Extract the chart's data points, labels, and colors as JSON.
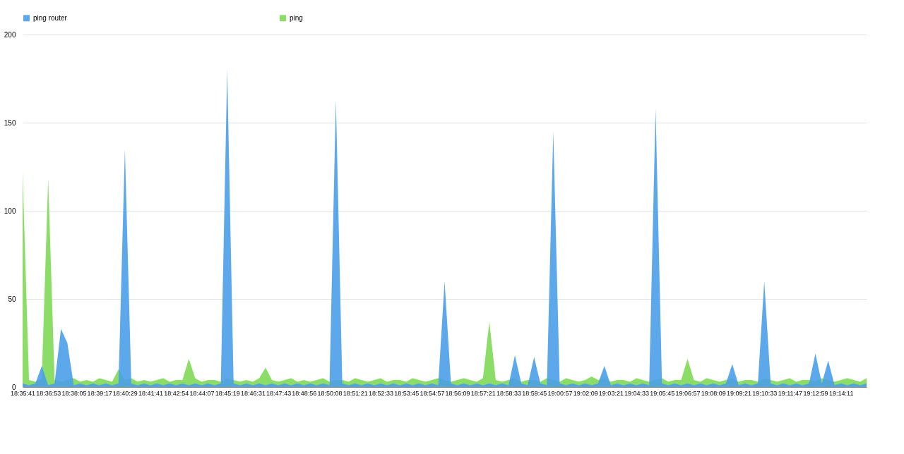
{
  "chart_data": {
    "type": "area",
    "categories": [
      "18:35:41",
      null,
      null,
      null,
      "18:36:53",
      null,
      null,
      null,
      "18:38:05",
      null,
      null,
      null,
      "18:39:17",
      null,
      null,
      null,
      "18:40:29",
      null,
      null,
      null,
      "18:41:41",
      null,
      null,
      null,
      "18:42:54",
      null,
      null,
      null,
      "18:44:07",
      null,
      null,
      null,
      "18:45:19",
      null,
      null,
      null,
      "18:46:31",
      null,
      null,
      null,
      "18:47:43",
      null,
      null,
      null,
      "18:48:56",
      null,
      null,
      null,
      "18:50:08",
      null,
      null,
      null,
      "18:51:21",
      null,
      null,
      null,
      "18:52:33",
      null,
      null,
      null,
      "18:53:45",
      null,
      null,
      null,
      "18:54:57",
      null,
      null,
      null,
      "18:56:09",
      null,
      null,
      null,
      "18:57:21",
      null,
      null,
      null,
      "18:58:33",
      null,
      null,
      null,
      "18:59:45",
      null,
      null,
      null,
      "19:00:57",
      null,
      null,
      null,
      "19:02:09",
      null,
      null,
      null,
      "19:03:21",
      null,
      null,
      null,
      "19:04:33",
      null,
      null,
      null,
      "19:05:45",
      null,
      null,
      null,
      "19:06:57",
      null,
      null,
      null,
      "19:08:09",
      null,
      null,
      null,
      "19:09:21",
      null,
      null,
      null,
      "19:10:33",
      null,
      null,
      null,
      "19:11:47",
      null,
      null,
      null,
      "19:12:59",
      null,
      null,
      null,
      "19:14:11",
      null,
      null,
      null,
      null
    ],
    "series": [
      {
        "name": "ping router",
        "color": "#4a9fe8",
        "values": [
          2,
          1,
          2,
          12,
          1,
          2,
          33,
          25,
          1,
          2,
          1,
          2,
          1,
          2,
          1,
          2,
          135,
          2,
          1,
          2,
          1,
          2,
          1,
          2,
          1,
          2,
          1,
          2,
          1,
          2,
          1,
          2,
          180,
          2,
          1,
          2,
          1,
          2,
          1,
          2,
          1,
          2,
          1,
          2,
          1,
          2,
          1,
          2,
          1,
          163,
          2,
          1,
          2,
          1,
          2,
          1,
          2,
          1,
          2,
          1,
          2,
          1,
          2,
          1,
          2,
          1,
          60,
          2,
          1,
          2,
          1,
          2,
          1,
          2,
          1,
          2,
          1,
          18,
          2,
          1,
          17,
          2,
          1,
          145,
          2,
          1,
          2,
          1,
          2,
          1,
          2,
          12,
          1,
          2,
          1,
          2,
          1,
          2,
          1,
          158,
          2,
          1,
          2,
          1,
          2,
          1,
          2,
          1,
          2,
          1,
          2,
          13,
          1,
          2,
          1,
          2,
          60,
          2,
          1,
          2,
          1,
          2,
          1,
          2,
          19,
          2,
          15,
          1,
          2,
          1,
          2,
          1,
          2
        ]
      },
      {
        "name": "ping",
        "color": "#7ed957",
        "values": [
          122,
          4,
          3,
          5,
          118,
          4,
          3,
          4,
          5,
          3,
          4,
          3,
          5,
          4,
          3,
          10,
          4,
          5,
          3,
          4,
          3,
          4,
          5,
          3,
          4,
          4,
          16,
          5,
          3,
          4,
          4,
          3,
          5,
          4,
          3,
          4,
          3,
          5,
          11,
          4,
          3,
          4,
          5,
          3,
          4,
          3,
          4,
          5,
          3,
          4,
          4,
          3,
          5,
          4,
          3,
          4,
          5,
          3,
          4,
          4,
          3,
          5,
          4,
          3,
          4,
          5,
          4,
          3,
          4,
          5,
          4,
          3,
          5,
          37,
          4,
          3,
          4,
          5,
          3,
          4,
          4,
          3,
          5,
          4,
          3,
          5,
          4,
          3,
          4,
          6,
          4,
          5,
          3,
          4,
          4,
          3,
          5,
          4,
          3,
          4,
          5,
          3,
          4,
          4,
          16,
          4,
          3,
          5,
          4,
          3,
          4,
          5,
          3,
          4,
          4,
          3,
          5,
          4,
          3,
          4,
          5,
          3,
          4,
          4,
          3,
          5,
          4,
          3,
          4,
          5,
          4,
          3,
          5
        ]
      }
    ],
    "ylim": [
      0,
      200
    ],
    "yticks": [
      0,
      50,
      100,
      150,
      200
    ],
    "grid": "y",
    "legend": "top"
  }
}
